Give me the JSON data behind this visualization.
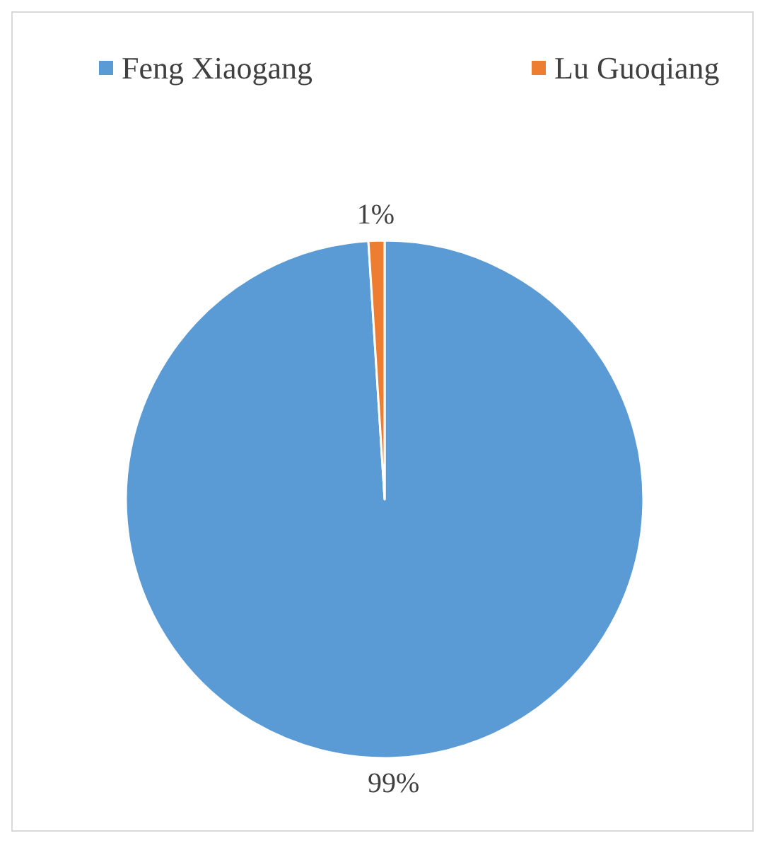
{
  "chart_data": {
    "type": "pie",
    "categories": [
      "Feng Xiaogang",
      "Lu Guoqiang"
    ],
    "values": [
      99,
      1
    ],
    "colors": [
      "#5b9bd5",
      "#ed7d31"
    ],
    "value_labels": [
      "99%",
      "1%"
    ],
    "legend": "top"
  }
}
